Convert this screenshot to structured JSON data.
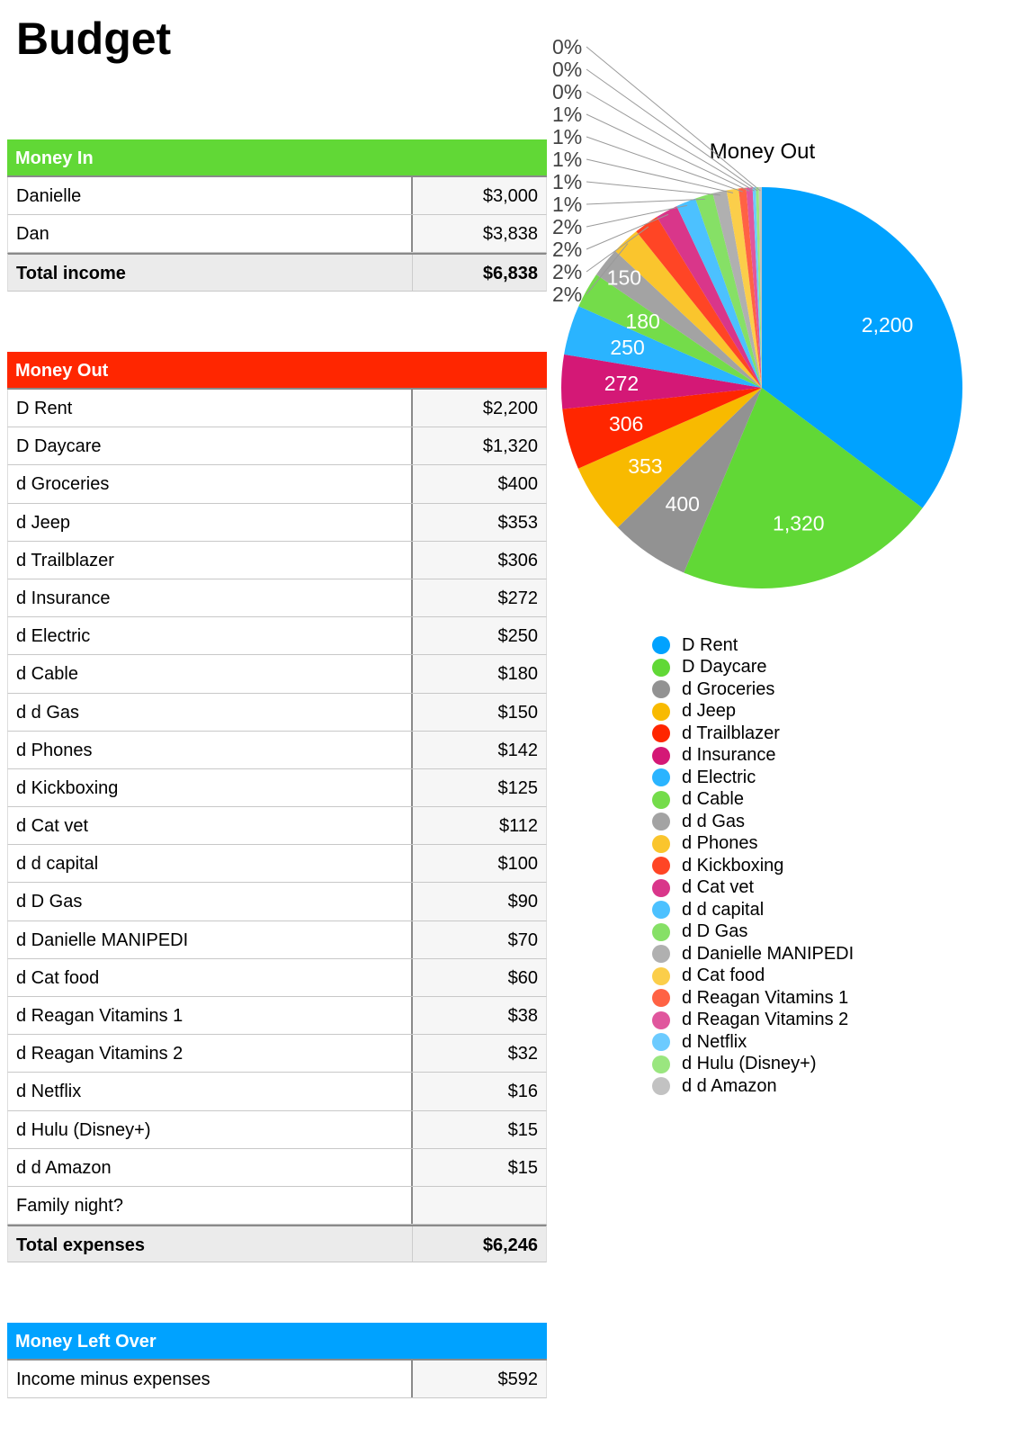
{
  "title": "Budget",
  "money_in": {
    "header": "Money In",
    "color": "#61d836",
    "rows": [
      {
        "label": "Danielle",
        "value": "$3,000"
      },
      {
        "label": "Dan",
        "value": "$3,838"
      }
    ],
    "total": {
      "label": "Total income",
      "value": "$6,838"
    }
  },
  "money_out": {
    "header": "Money Out",
    "color": "#ff2600",
    "rows": [
      {
        "label": "D Rent",
        "value": "$2,200"
      },
      {
        "label": "D Daycare",
        "value": "$1,320"
      },
      {
        "label": "d Groceries",
        "value": "$400"
      },
      {
        "label": "d Jeep",
        "value": "$353"
      },
      {
        "label": "d Trailblazer",
        "value": "$306"
      },
      {
        "label": "d Insurance",
        "value": "$272"
      },
      {
        "label": "d Electric",
        "value": "$250"
      },
      {
        "label": "d Cable",
        "value": "$180"
      },
      {
        "label": "d d Gas",
        "value": "$150"
      },
      {
        "label": "d Phones",
        "value": "$142"
      },
      {
        "label": "d Kickboxing",
        "value": "$125"
      },
      {
        "label": "d Cat vet",
        "value": "$112"
      },
      {
        "label": "d d capital",
        "value": "$100"
      },
      {
        "label": "d D Gas",
        "value": "$90"
      },
      {
        "label": "d Danielle MANIPEDI",
        "value": "$70"
      },
      {
        "label": "d Cat food",
        "value": "$60"
      },
      {
        "label": "d Reagan Vitamins 1",
        "value": "$38"
      },
      {
        "label": "d Reagan Vitamins 2",
        "value": "$32"
      },
      {
        "label": "d Netflix",
        "value": "$16"
      },
      {
        "label": "d Hulu (Disney+)",
        "value": "$15"
      },
      {
        "label": "d d Amazon",
        "value": "$15"
      },
      {
        "label": "Family night?",
        "value": ""
      }
    ],
    "total": {
      "label": "Total expenses",
      "value": "$6,246"
    }
  },
  "left_over": {
    "header": "Money Left Over",
    "color": "#00a2ff",
    "rows": [
      {
        "label": "Income minus expenses",
        "value": "$592"
      }
    ]
  },
  "chart_data": {
    "type": "pie",
    "title": "Money Out",
    "legend": "bottom",
    "categories": [
      "D Rent",
      "D Daycare",
      "d Groceries",
      "d Jeep",
      "d Trailblazer",
      "d Insurance",
      "d Electric",
      "d Cable",
      "d d Gas",
      "d Phones",
      "d Kickboxing",
      "d Cat vet",
      "d d capital",
      "d D Gas",
      "d Danielle MANIPEDI",
      "d Cat food",
      "d Reagan Vitamins 1",
      "d Reagan Vitamins 2",
      "d Netflix",
      "d Hulu (Disney+)",
      "d d Amazon"
    ],
    "values": [
      2200,
      1320,
      400,
      353,
      306,
      272,
      250,
      180,
      150,
      142,
      125,
      112,
      100,
      90,
      70,
      60,
      38,
      32,
      16,
      15,
      15
    ],
    "data_labels": [
      "2,200",
      "1,320",
      "400",
      "353",
      "306",
      "272",
      "250",
      "180",
      "150",
      "2%",
      "2%",
      "2%",
      "2%",
      "1%",
      "1%",
      "1%",
      "1%",
      "1%",
      "0%",
      "0%",
      "0%"
    ],
    "colors": [
      "#00a2ff",
      "#61d836",
      "#929292",
      "#f8ba00",
      "#ff2600",
      "#d41876",
      "#2ab4ff",
      "#74dc4a",
      "#a3a3a3",
      "#fac52d",
      "#ff4525",
      "#d9368a",
      "#4cc1ff",
      "#86e066",
      "#b0b0b0",
      "#fbce4a",
      "#ff6244",
      "#e0569d",
      "#6ccbff",
      "#9ae67f",
      "#c2c2c2"
    ]
  }
}
